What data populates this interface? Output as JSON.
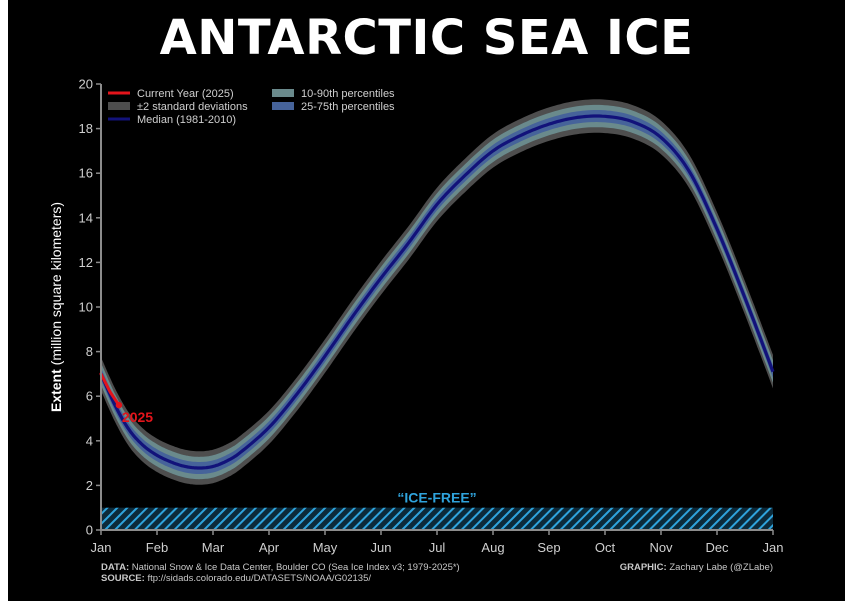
{
  "chart_data": {
    "type": "line",
    "title": "ANTARCTIC SEA ICE",
    "ylabel_bold": "Extent",
    "ylabel_rest": " (million square kilometers)",
    "ylim": [
      0,
      20
    ],
    "yticks": [
      0,
      2,
      4,
      6,
      8,
      10,
      12,
      14,
      16,
      18,
      20
    ],
    "xlim": [
      0,
      12
    ],
    "months": [
      "Jan",
      "Feb",
      "Mar",
      "Apr",
      "May",
      "Jun",
      "Jul",
      "Aug",
      "Sep",
      "Oct",
      "Nov",
      "Dec",
      "Jan"
    ],
    "legend": {
      "current": "Current Year (2025)",
      "std": "±2 standard deviations",
      "median": "Median (1981-2010)",
      "p1090": "10-90th percentiles",
      "p2575": "25-75th percentiles"
    },
    "median": {
      "x": [
        0,
        0.25,
        0.5,
        0.75,
        1.0,
        1.25,
        1.5,
        1.75,
        2.0,
        2.25,
        2.5,
        3.0,
        3.5,
        4.0,
        4.5,
        5.0,
        5.5,
        6.0,
        6.5,
        7.0,
        7.5,
        8.0,
        8.5,
        9.0,
        9.5,
        10.0,
        10.5,
        11.0,
        11.5,
        12.0
      ],
      "y": [
        7.0,
        5.6,
        4.5,
        3.8,
        3.35,
        3.05,
        2.85,
        2.78,
        2.85,
        3.1,
        3.5,
        4.6,
        6.1,
        7.8,
        9.6,
        11.3,
        12.9,
        14.6,
        15.9,
        17.0,
        17.7,
        18.2,
        18.5,
        18.55,
        18.3,
        17.6,
        16.1,
        13.5,
        10.4,
        7.1
      ]
    },
    "current_year": {
      "name": "2025",
      "x": [
        0,
        0.08,
        0.16,
        0.24,
        0.32
      ],
      "y": [
        7.0,
        6.6,
        6.2,
        5.9,
        5.6
      ]
    },
    "std_half_width": 0.75,
    "p1090_half_width": 0.5,
    "p2575_half_width": 0.27,
    "ice_free": {
      "label": "“ICE-FREE”",
      "ymax": 1.0
    },
    "colors": {
      "background": "#000000",
      "current": "#e4141b",
      "median": "#12127a",
      "std": "#4e4e4e",
      "p1090": "#6a8a8c",
      "p2575": "#46639a",
      "ice_free": "#2fa3dc",
      "axis": "#8c8c8c",
      "text": "#cfcfcf"
    }
  },
  "credits": {
    "data_label": "DATA:",
    "data_text": " National Snow & Ice Data Center, Boulder CO (Sea Ice Index v3; 1979-2025*)",
    "source_label": "SOURCE:",
    "source_text": " ftp://sidads.colorado.edu/DATASETS/NOAA/G02135/",
    "graphic_label": "GRAPHIC:",
    "graphic_text": " Zachary Labe (@ZLabe)"
  }
}
